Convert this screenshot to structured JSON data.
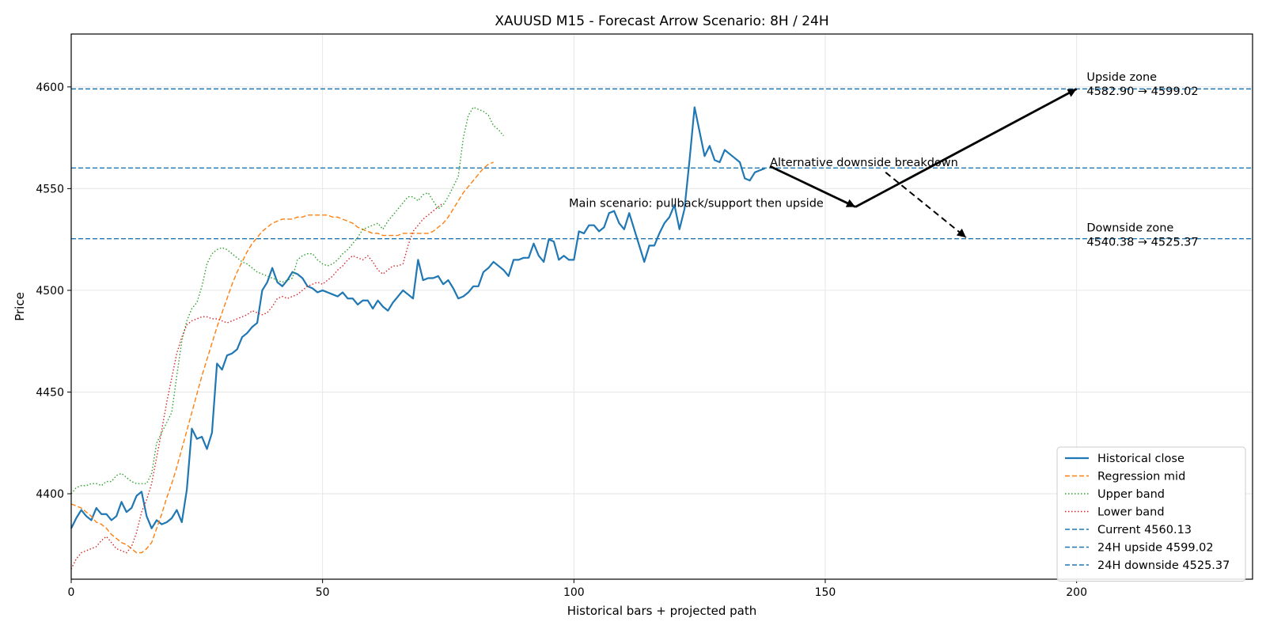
{
  "chart_data": {
    "type": "line",
    "title": "XAUUSD M15 - Forecast Arrow Scenario: 8H / 24H",
    "xlabel": "Historical bars + projected path",
    "ylabel": "Price",
    "xlim": [
      0,
      235
    ],
    "ylim": [
      4358,
      4626
    ],
    "x_ticks": [
      0,
      50,
      100,
      150,
      200
    ],
    "y_ticks": [
      4400,
      4450,
      4500,
      4550,
      4600
    ],
    "grid": true,
    "legend_position": "lower-right",
    "series": [
      {
        "name": "Historical close",
        "color": "#1f77b4",
        "style": "solid",
        "values": [
          4383,
          4388,
          4392,
          4389,
          4387,
          4393,
          4390,
          4390,
          4387,
          4389,
          4396,
          4391,
          4393,
          4399,
          4401,
          4389,
          4383,
          4387,
          4385,
          4386,
          4388,
          4392,
          4386,
          4402,
          4432,
          4427,
          4428,
          4422,
          4430,
          4464,
          4461,
          4468,
          4469,
          4471,
          4477,
          4479,
          4482,
          4484,
          4500,
          4504,
          4511,
          4504,
          4502,
          4505,
          4509,
          4508,
          4506,
          4502,
          4501,
          4499,
          4500,
          4499,
          4498,
          4497,
          4499,
          4496,
          4496,
          4493,
          4495,
          4495,
          4491,
          4495,
          4492,
          4490,
          4494,
          4497,
          4500,
          4498,
          4496,
          4515,
          4505,
          4506,
          4506,
          4507,
          4503,
          4505,
          4501,
          4496,
          4497,
          4499,
          4502,
          4502,
          4509,
          4511,
          4514,
          4512,
          4510,
          4507,
          4515,
          4515,
          4516,
          4516,
          4523,
          4517,
          4514,
          4525,
          4524,
          4515,
          4517,
          4515,
          4515,
          4529,
          4528,
          4532,
          4532,
          4529,
          4531,
          4538,
          4539,
          4533,
          4530,
          4538,
          4530,
          4522,
          4514,
          4522,
          4522,
          4528,
          4533,
          4536,
          4542,
          4530,
          4540,
          4564,
          4590,
          4578,
          4566,
          4571,
          4564,
          4563,
          4569,
          4567,
          4565,
          4563,
          4555,
          4554,
          4558,
          4559,
          4560
        ]
      },
      {
        "name": "Regression mid",
        "color": "#ff7f0e",
        "style": "dashed",
        "values": [
          4395,
          4394,
          4393,
          4391,
          4389,
          4386,
          4385,
          4383,
          4380,
          4378,
          4376,
          4375,
          4373,
          4371,
          4371,
          4373,
          4376,
          4383,
          4390,
          4398,
          4405,
          4413,
          4422,
          4431,
          4440,
          4449,
          4458,
          4466,
          4474,
          4482,
          4489,
          4496,
          4503,
          4509,
          4514,
          4519,
          4523,
          4526,
          4529,
          4531,
          4533,
          4534,
          4535,
          4535,
          4535,
          4536,
          4536,
          4537,
          4537,
          4537,
          4537,
          4537,
          4536,
          4536,
          4535,
          4534,
          4533,
          4531,
          4530,
          4529,
          4528,
          4528,
          4527,
          4527,
          4527,
          4527,
          4528,
          4528,
          4528,
          4528,
          4528,
          4528,
          4529,
          4531,
          4533,
          4536,
          4540,
          4544,
          4548,
          4551,
          4554,
          4557,
          4560,
          4562,
          4563
        ]
      },
      {
        "name": "Upper band",
        "color": "#2ca02c",
        "style": "dotted",
        "values": [
          4400,
          4403,
          4404,
          4404,
          4405,
          4405,
          4404,
          4406,
          4406,
          4409,
          4410,
          4408,
          4406,
          4405,
          4405,
          4405,
          4410,
          4425,
          4430,
          4435,
          4440,
          4458,
          4475,
          4485,
          4491,
          4494,
          4502,
          4513,
          4518,
          4520,
          4521,
          4520,
          4518,
          4516,
          4514,
          4513,
          4511,
          4509,
          4508,
          4507,
          4506,
          4505,
          4504,
          4505,
          4506,
          4515,
          4517,
          4518,
          4518,
          4515,
          4513,
          4512,
          4513,
          4515,
          4518,
          4520,
          4523,
          4526,
          4530,
          4531,
          4532,
          4533,
          4530,
          4534,
          4537,
          4540,
          4543,
          4546,
          4546,
          4544,
          4547,
          4548,
          4544,
          4540,
          4542,
          4546,
          4551,
          4556,
          4575,
          4586,
          4590,
          4589,
          4588,
          4586,
          4581,
          4579,
          4576
        ]
      },
      {
        "name": "Lower band",
        "color": "#d62728",
        "style": "dotted",
        "values": [
          4363,
          4368,
          4371,
          4372,
          4373,
          4374,
          4377,
          4379,
          4376,
          4373,
          4372,
          4371,
          4374,
          4381,
          4391,
          4397,
          4405,
          4418,
          4431,
          4445,
          4457,
          4469,
          4477,
          4483,
          4485,
          4486,
          4487,
          4487,
          4486,
          4486,
          4485,
          4484,
          4485,
          4486,
          4487,
          4488,
          4490,
          4489,
          4488,
          4489,
          4492,
          4496,
          4497,
          4496,
          4497,
          4498,
          4500,
          4502,
          4503,
          4504,
          4503,
          4505,
          4507,
          4510,
          4512,
          4515,
          4517,
          4516,
          4515,
          4517,
          4514,
          4510,
          4508,
          4510,
          4512,
          4512,
          4513,
          4522,
          4529,
          4532,
          4535,
          4537,
          4539,
          4541,
          4543
        ]
      }
    ],
    "hlines": [
      {
        "name": "Current 4560.13",
        "value": 4560.13,
        "color": "#1f77b4",
        "style": "dashed"
      },
      {
        "name": "24H upside 4599.02",
        "value": 4599.02,
        "color": "#1f77b4",
        "style": "dashed"
      },
      {
        "name": "24H downside 4525.37",
        "value": 4525.37,
        "color": "#1f77b4",
        "style": "dashed"
      }
    ],
    "arrows": [
      {
        "from": [
          139,
          4561
        ],
        "to": [
          156,
          4541
        ],
        "style": "solid",
        "role": "main-scenario-leg-1"
      },
      {
        "from": [
          156,
          4541
        ],
        "to": [
          200,
          4599
        ],
        "style": "solid",
        "role": "main-scenario-leg-2"
      },
      {
        "from": [
          162,
          4558
        ],
        "to": [
          178,
          4526
        ],
        "style": "dashed",
        "role": "alternative-downside"
      }
    ],
    "annotations": [
      {
        "text": "Upside zone",
        "x": 202,
        "y": 4603
      },
      {
        "text": "4582.90 → 4599.02",
        "x": 202,
        "y": 4596
      },
      {
        "text": "Alternative downside breakdown",
        "x": 139,
        "y": 4561
      },
      {
        "text": "Main scenario: pullback/support then upside",
        "x": 99,
        "y": 4541
      },
      {
        "text": "Downside zone",
        "x": 202,
        "y": 4529
      },
      {
        "text": "4540.38 → 4525.37",
        "x": 202,
        "y": 4522
      }
    ]
  }
}
